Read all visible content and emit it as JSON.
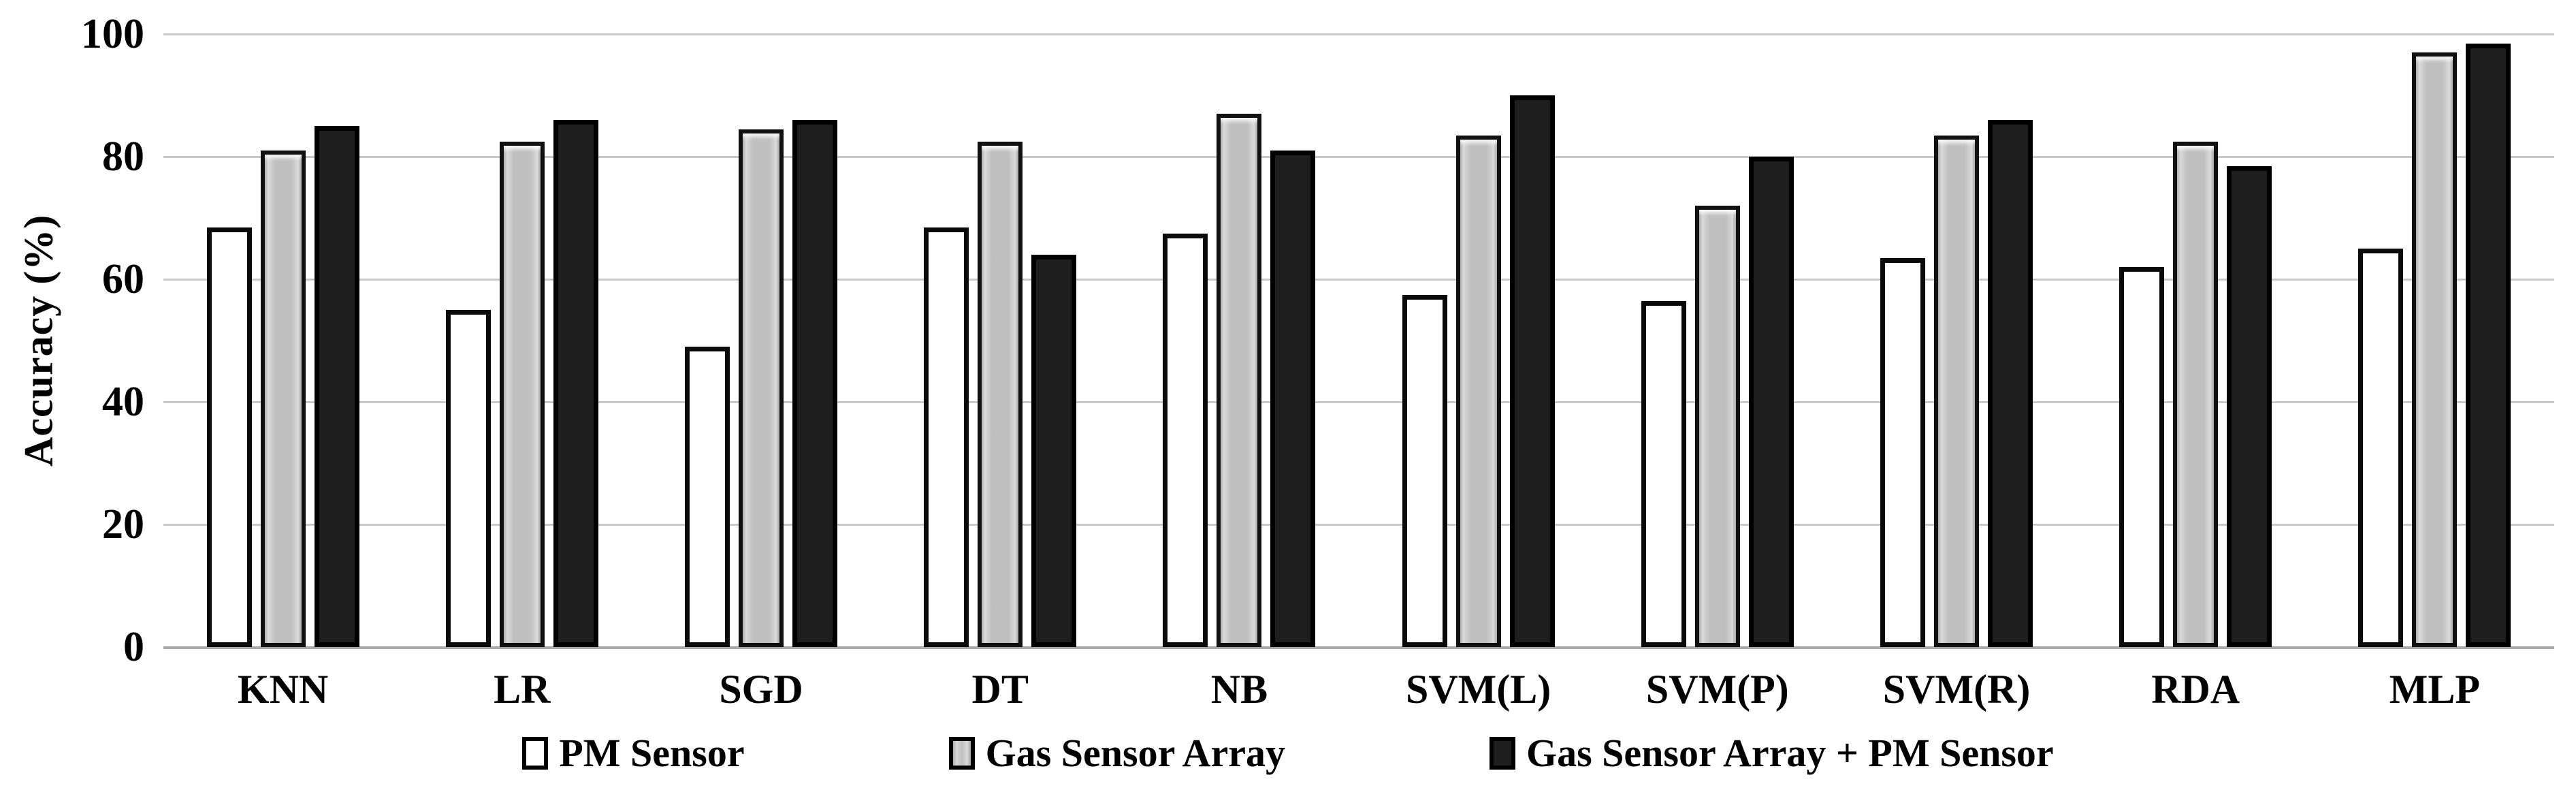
{
  "chart_data": {
    "type": "bar",
    "title": "",
    "xlabel": "",
    "ylabel": "Accuracy (%)",
    "ylim": [
      0,
      100
    ],
    "yticks": [
      0,
      20,
      40,
      60,
      80,
      100
    ],
    "grid": "horizontal-only",
    "legend_position": "bottom-center",
    "background_color": "#ffffff",
    "gridline_color": "#c9c9c9",
    "categories": [
      "KNN",
      "LR",
      "SGD",
      "DT",
      "NB",
      "SVM(L)",
      "SVM(P)",
      "SVM(R)",
      "RDA",
      "MLP"
    ],
    "series": [
      {
        "name": "PM Sensor",
        "fill_color": "#ffffff",
        "border_color": "#0a0a0a",
        "values": [
          68.5,
          55,
          49,
          68.5,
          67.5,
          57.5,
          56.5,
          63.5,
          62,
          65
        ]
      },
      {
        "name": "Gas Sensor Array",
        "fill_color": "#c2c2c2",
        "border_color": "#111111",
        "values": [
          81,
          82.5,
          84.5,
          82.5,
          87,
          83.5,
          72,
          83.5,
          82.5,
          97
        ]
      },
      {
        "name": "Gas Sensor Array + PM Sensor",
        "fill_color": "#1e1e1e",
        "border_color": "#000000",
        "values": [
          85,
          86,
          86,
          64,
          81,
          90,
          80,
          86,
          78.5,
          98.5
        ]
      }
    ]
  }
}
